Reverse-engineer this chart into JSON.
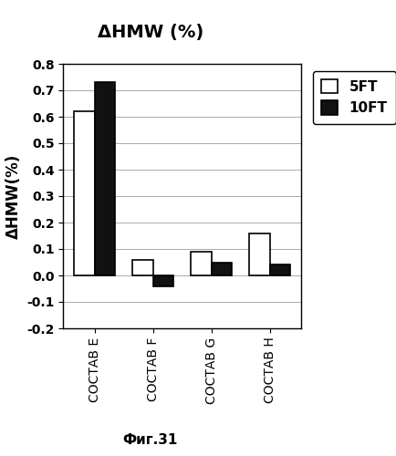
{
  "title": "ΔHMW (%)",
  "ylabel": "ΔHMW(%)",
  "xlabel": "Фиг.31",
  "categories": [
    "СОСТАВ E",
    "СОСТАВ F",
    "СОСТАВ G",
    "СОСТАВ H"
  ],
  "values_5ft": [
    0.62,
    0.06,
    0.09,
    0.16
  ],
  "values_10ft": [
    0.73,
    -0.04,
    0.05,
    0.04
  ],
  "bar_color_5ft": "#ffffff",
  "bar_color_10ft": "#111111",
  "bar_edgecolor": "#000000",
  "ylim": [
    -0.2,
    0.8
  ],
  "yticks": [
    -0.2,
    -0.1,
    0.0,
    0.1,
    0.2,
    0.3,
    0.4,
    0.5,
    0.6,
    0.7,
    0.8
  ],
  "legend_labels": [
    "5FT",
    "10FT"
  ],
  "bar_width": 0.35,
  "background_color": "#ffffff",
  "title_fontsize": 14,
  "ylabel_fontsize": 12,
  "xlabel_fontsize": 11,
  "tick_fontsize": 10,
  "legend_fontsize": 11
}
